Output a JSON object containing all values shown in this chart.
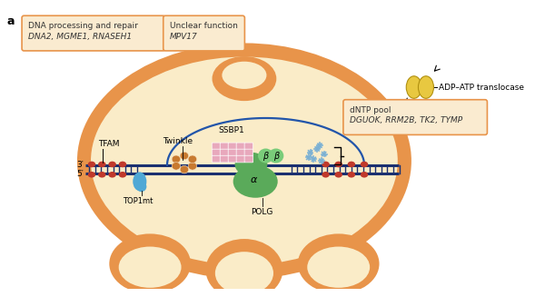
{
  "bg_color": "#ffffff",
  "mito_outer_color": "#e8944a",
  "mito_inner_color": "#faecc8",
  "dna_dark": "#1a3070",
  "dna_light": "#2255aa",
  "tfam_color": "#c0392b",
  "twinkle_color": "#c87a30",
  "ssbp1_color": "#e8a8bc",
  "polg_alpha_color": "#5aaa5a",
  "polg_beta_color": "#7acc7a",
  "top1mt_color": "#4fa8d5",
  "adp_atp_color": "#e8c840",
  "adp_atp_dark": "#b09010",
  "ntp_color": "#7ab0d4",
  "box_border_color": "#e8944a",
  "box_fill_color": "#faebd0",
  "label_a": "a",
  "box1_line1": "DNA processing and repair",
  "box1_line2": "DNA2, MGME1, RNASEH1",
  "box2_line1": "Unclear function",
  "box2_line2": "MPV17",
  "box3_label": "ADP–ATP translocase",
  "box4_line1": "dNTP pool",
  "box4_line2": "DGUOK, RRM2B, TK2, TYMP",
  "label_tfam": "TFAM",
  "label_3prime": "3′",
  "label_5prime": "5′",
  "label_top1mt": "TOP1mt",
  "label_polg": "POLG",
  "label_twinkle": "Twinkle",
  "label_ssbp1": "SSBP1",
  "label_beta": "β",
  "label_alpha": "α"
}
